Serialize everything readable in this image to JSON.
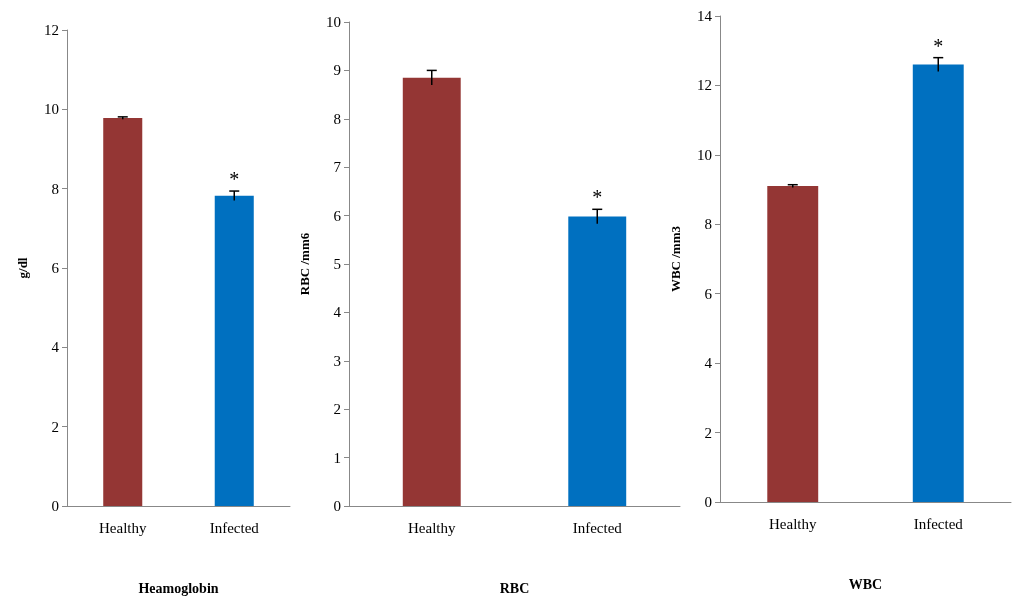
{
  "chart_data": [
    {
      "type": "bar",
      "xlabel": "Heamoglobin",
      "ylabel": "g/dl",
      "categories": [
        "Healthy",
        "Infected"
      ],
      "values": [
        9.78,
        7.82
      ],
      "errors": [
        0.03,
        0.12
      ],
      "colors": [
        "#943634",
        "#0070c0"
      ],
      "ylim": [
        0,
        12
      ],
      "yticks": [
        0,
        2,
        4,
        6,
        8,
        10,
        12
      ],
      "grid": false,
      "annotations": [
        {
          "text": "*",
          "x": "Infected",
          "y": 7.82
        }
      ]
    },
    {
      "type": "bar",
      "xlabel": "RBC",
      "ylabel": "RBC /mm6",
      "categories": [
        "Healthy",
        "Infected"
      ],
      "values": [
        8.85,
        5.98
      ],
      "errors": [
        0.15,
        0.15
      ],
      "colors": [
        "#943634",
        "#0070c0"
      ],
      "ylim": [
        0,
        10
      ],
      "yticks": [
        0,
        1,
        2,
        3,
        4,
        5,
        6,
        7,
        8,
        9,
        10
      ],
      "grid": false,
      "annotations": [
        {
          "text": "*",
          "x": "Infected",
          "y": 5.98
        }
      ]
    },
    {
      "type": "bar",
      "xlabel": "WBC",
      "ylabel": "WBC /mm3",
      "categories": [
        "Healthy",
        "Infected"
      ],
      "values": [
        9.1,
        12.6
      ],
      "errors": [
        0.04,
        0.2
      ],
      "colors": [
        "#943634",
        "#0070c0"
      ],
      "ylim": [
        0,
        14
      ],
      "yticks": [
        0,
        2,
        4,
        6,
        8,
        10,
        12,
        14
      ],
      "grid": false,
      "annotations": [
        {
          "text": "*",
          "x": "Infected",
          "y": 12.6
        }
      ]
    }
  ]
}
